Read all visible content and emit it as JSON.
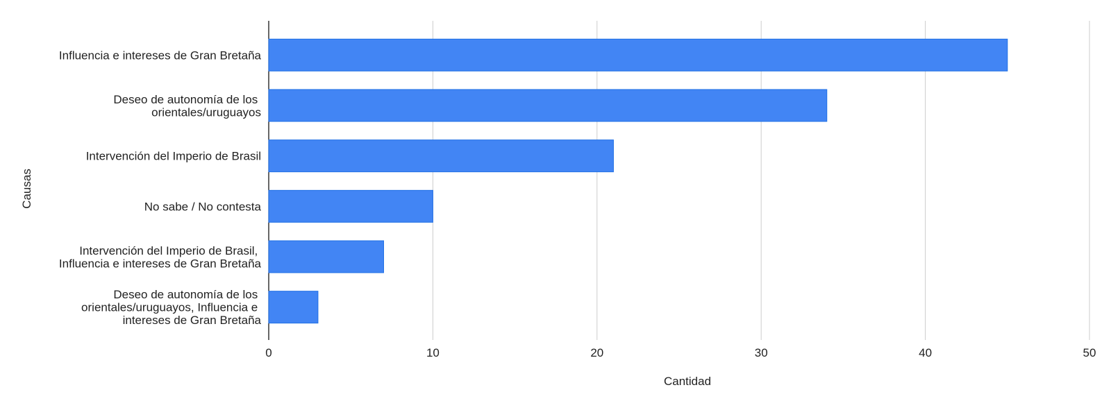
{
  "chart_data": {
    "type": "bar",
    "orientation": "horizontal",
    "x_label": "Cantidad",
    "y_label": "Causas",
    "categories": [
      "Influencia e intereses de Gran Bretaña",
      "Deseo de autonomía de los orientales/uruguayos",
      "Intervención del Imperio de Brasil",
      "No sabe / No contesta",
      "Intervención del Imperio de Brasil, Influencia e intereses de Gran Bretaña",
      "Deseo de autonomía de los orientales/uruguayos, Influencia e intereses de Gran Bretaña"
    ],
    "values": [
      45,
      34,
      21,
      10,
      7,
      3
    ],
    "color": "#4285f4",
    "xlim": [
      0,
      50
    ],
    "xticks": [
      0,
      10,
      20,
      30,
      40,
      50
    ],
    "grid": true
  }
}
